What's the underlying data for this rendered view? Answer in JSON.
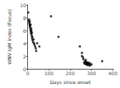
{
  "chart_data": {
    "type": "scatter",
    "xlabel": "Days since onset",
    "ylabel": "WNV IgM index (Focus)",
    "xlim": [
      0,
      400
    ],
    "ylim": [
      0,
      10
    ],
    "xticks": [
      0,
      100,
      200,
      300,
      400
    ],
    "yticks": [
      0,
      2,
      4,
      6,
      8,
      10
    ],
    "color": "black",
    "marker": "square",
    "grid": false,
    "x": [
      3,
      5,
      7,
      8,
      9,
      10,
      10,
      11,
      12,
      13,
      14,
      15,
      15,
      16,
      17,
      18,
      19,
      20,
      21,
      22,
      23,
      25,
      28,
      30,
      32,
      35,
      38,
      40,
      45,
      55,
      110,
      145,
      245,
      255,
      255,
      260,
      262,
      265,
      268,
      270,
      272,
      273,
      275,
      275,
      278,
      280,
      282,
      283,
      285,
      288,
      290,
      292,
      295,
      300,
      350
    ],
    "values": [
      8.8,
      7.5,
      7.7,
      7.2,
      7.0,
      6.8,
      7.4,
      6.5,
      6.7,
      6.2,
      6.9,
      6.0,
      5.8,
      5.5,
      6.3,
      5.9,
      5.2,
      5.6,
      4.8,
      5.0,
      4.5,
      4.2,
      4.6,
      4.0,
      3.8,
      3.5,
      3.2,
      2.8,
      4.0,
      3.5,
      8.2,
      5.0,
      3.5,
      2.5,
      2.0,
      1.8,
      1.5,
      1.0,
      0.8,
      1.2,
      0.9,
      1.4,
      0.7,
      1.1,
      0.8,
      0.6,
      0.9,
      1.0,
      0.7,
      0.8,
      0.5,
      0.9,
      0.6,
      0.7,
      1.2
    ]
  }
}
